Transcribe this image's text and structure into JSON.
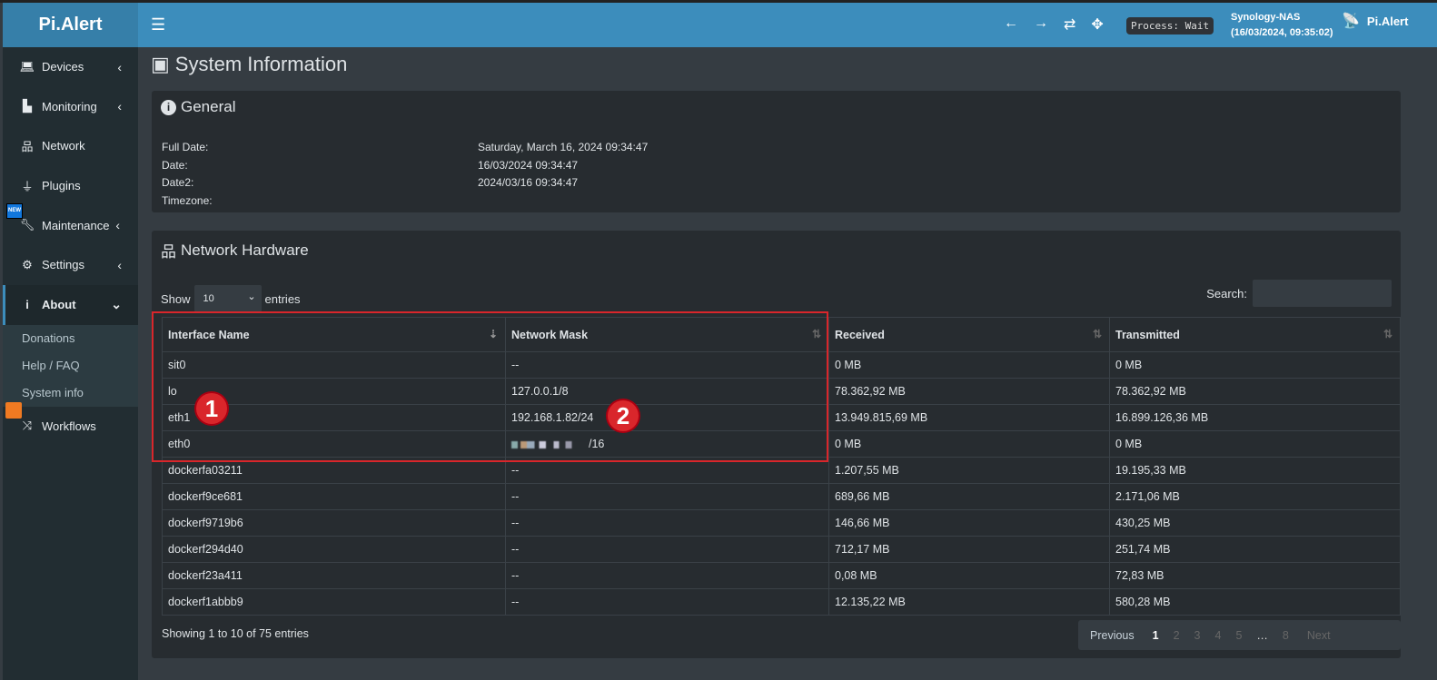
{
  "app": {
    "logo": "Pi.Alert",
    "process": "Process: Wait",
    "host": "Synology-NAS",
    "host_time": "(16/03/2024, 09:35:02)",
    "brand": "Pi.Alert"
  },
  "sidebar": {
    "items": [
      {
        "label": "Devices"
      },
      {
        "label": "Monitoring"
      },
      {
        "label": "Network"
      },
      {
        "label": "Plugins"
      },
      {
        "label": "Maintenance",
        "badge": "NEW"
      },
      {
        "label": "Settings"
      },
      {
        "label": "About"
      },
      {
        "label": "Workflows"
      }
    ],
    "about_sub": [
      "Donations",
      "Help / FAQ",
      "System info"
    ]
  },
  "page": {
    "title": "System Information"
  },
  "general": {
    "title": "General",
    "rows": [
      {
        "k": "Full Date:",
        "v": "Saturday, March 16, 2024 09:34:47"
      },
      {
        "k": "Date:",
        "v": "16/03/2024 09:34:47"
      },
      {
        "k": "Date2:",
        "v": "2024/03/16 09:34:47"
      },
      {
        "k": "Timezone:",
        "v": ""
      }
    ]
  },
  "network": {
    "title": "Network Hardware",
    "show": "Show",
    "entries": "entries",
    "page_size": "10",
    "search_label": "Search:",
    "columns": [
      "Interface Name",
      "Network Mask",
      "Received",
      "Transmitted"
    ],
    "rows": [
      [
        "sit0",
        "--",
        "0 MB",
        "0 MB"
      ],
      [
        "lo",
        "127.0.0.1/8",
        "78.362,92 MB",
        "78.362,92 MB"
      ],
      [
        "eth1",
        "192.168.1.82/24",
        "13.949.815,69 MB",
        "16.899.126,36 MB"
      ],
      [
        "eth0",
        "/16",
        "0 MB",
        "0 MB"
      ],
      [
        "dockerfa03211",
        "--",
        "1.207,55 MB",
        "19.195,33 MB"
      ],
      [
        "dockerf9ce681",
        "--",
        "689,66 MB",
        "2.171,06 MB"
      ],
      [
        "dockerf9719b6",
        "--",
        "146,66 MB",
        "430,25 MB"
      ],
      [
        "dockerf294d40",
        "--",
        "712,17 MB",
        "251,74 MB"
      ],
      [
        "dockerf23a411",
        "--",
        "0,08 MB",
        "72,83 MB"
      ],
      [
        "dockerf1abbb9",
        "--",
        "12.135,22 MB",
        "580,28 MB"
      ]
    ],
    "info": "Showing 1 to 10 of 75 entries",
    "pager": {
      "previous": "Previous",
      "pages": [
        "1",
        "2",
        "3",
        "4",
        "5",
        "…",
        "8"
      ],
      "next": "Next",
      "current": "1"
    }
  },
  "annotations": [
    "1",
    "2"
  ]
}
